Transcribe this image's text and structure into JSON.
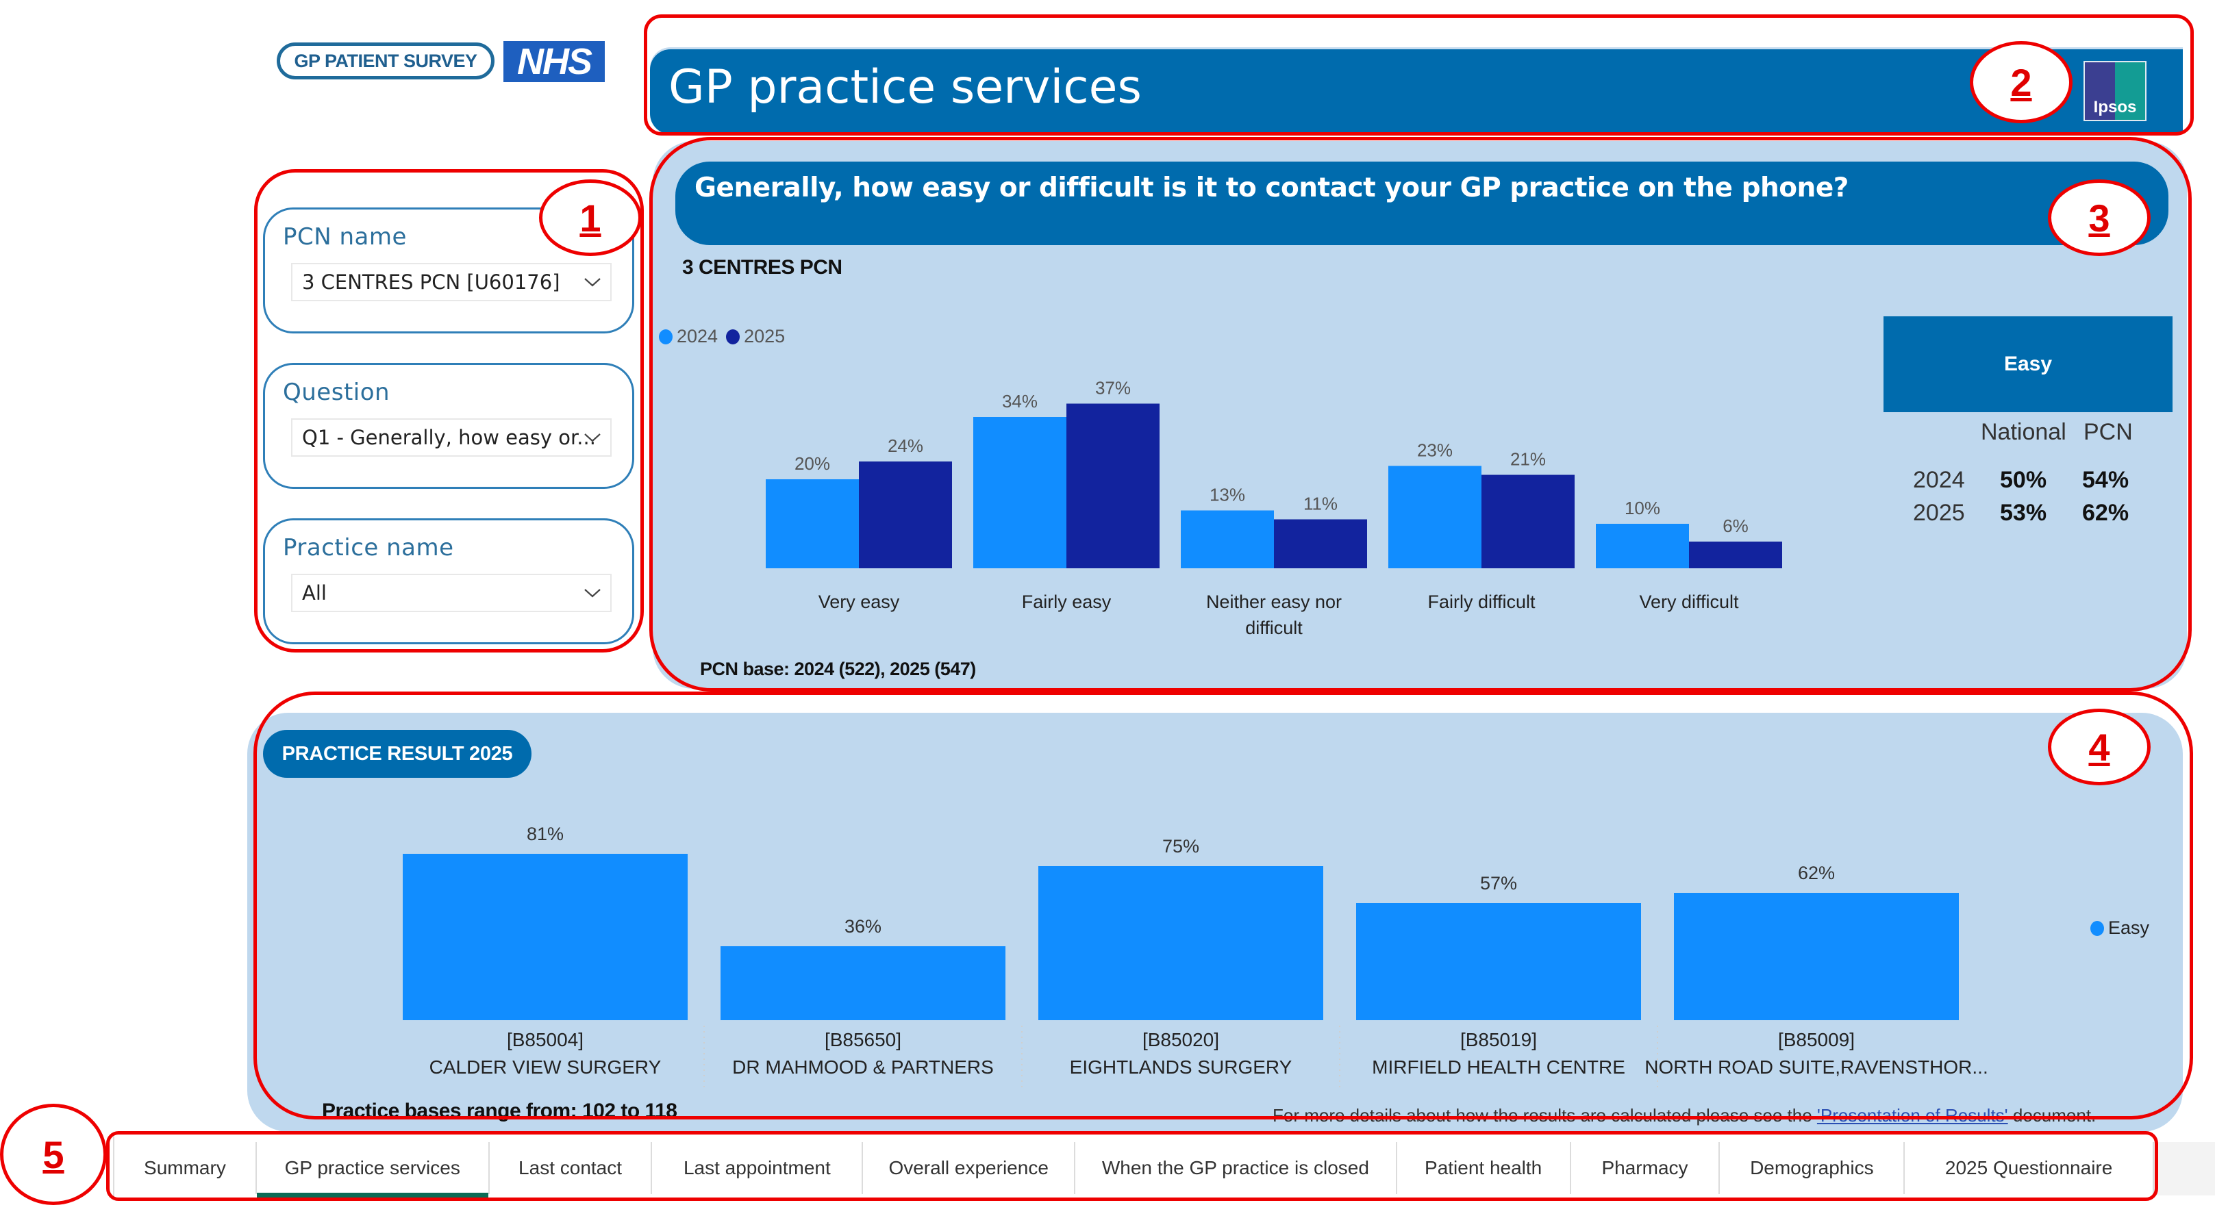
{
  "logos": {
    "survey_logo_text": "GP PATIENT SURVEY",
    "nhs_logo_text": "NHS",
    "ipsos_logo_text": "Ipsos"
  },
  "header": {
    "title": "GP practice services"
  },
  "filters": {
    "pcn": {
      "label": "PCN name",
      "value": "3 CENTRES PCN [U60176]",
      "icon": "chevron-down-icon"
    },
    "question": {
      "label": "Question",
      "value": "Q1 - Generally, how easy or...",
      "icon": "chevron-down-icon"
    },
    "practice": {
      "label": "Practice name",
      "value": "All",
      "icon": "chevron-down-icon"
    }
  },
  "question_panel": {
    "question": "Generally, how easy or difficult is it to contact your GP practice on the phone?",
    "pcn_title": "3 CENTRES PCN",
    "base_note": "PCN base: 2024 (522), 2025 (547)",
    "summary": {
      "title": "Easy",
      "col_headers": [
        "National",
        "PCN"
      ],
      "rows": [
        {
          "year": "2024",
          "national": "50%",
          "pcn": "54%"
        },
        {
          "year": "2025",
          "national": "53%",
          "pcn": "62%"
        }
      ]
    }
  },
  "practice_panel": {
    "pill": "PRACTICE RESULT 2025",
    "bases_note": "Practice bases range from: 102 to 118",
    "details_prefix": "For more details about how the results are calculated please see the ",
    "details_link": "'Presentation of Results'",
    "details_suffix": " document."
  },
  "tabs": [
    {
      "label": "Summary",
      "active": false
    },
    {
      "label": "GP practice services",
      "active": true
    },
    {
      "label": "Last contact",
      "active": false
    },
    {
      "label": "Last appointment",
      "active": false
    },
    {
      "label": "Overall experience",
      "active": false
    },
    {
      "label": "When the GP practice is closed",
      "active": false
    },
    {
      "label": "Patient health",
      "active": false
    },
    {
      "label": "Pharmacy",
      "active": false
    },
    {
      "label": "Demographics",
      "active": false
    },
    {
      "label": "2025 Questionnaire",
      "active": false
    }
  ],
  "annotations": [
    "1",
    "2",
    "3",
    "4",
    "5"
  ],
  "colors": {
    "brand_blue": "#006bad",
    "panel_bg": "#bfd8ee",
    "series_2024": "#118dff",
    "series_2025": "#12239e",
    "active_tab": "#0b6b55",
    "annotation_red": "#ee0000"
  },
  "chart_data": [
    {
      "type": "bar",
      "title": "Generally, how easy or difficult is it to contact your GP practice on the phone?",
      "subtitle": "3 CENTRES PCN",
      "categories": [
        "Very easy",
        "Fairly easy",
        "Neither easy nor difficult",
        "Fairly difficult",
        "Very difficult"
      ],
      "series": [
        {
          "name": "2024",
          "values": [
            20,
            34,
            13,
            23,
            10
          ]
        },
        {
          "name": "2025",
          "values": [
            24,
            37,
            11,
            21,
            6
          ]
        }
      ],
      "value_suffix": "%",
      "legend": [
        "2024",
        "2025"
      ],
      "legend_position": "top-left",
      "ylim": [
        0,
        40
      ],
      "grid": false
    },
    {
      "type": "bar",
      "title": "PRACTICE RESULT 2025",
      "categories": [
        [
          "[B85004]",
          "CALDER VIEW SURGERY"
        ],
        [
          "[B85650]",
          "DR MAHMOOD & PARTNERS"
        ],
        [
          "[B85020]",
          "EIGHTLANDS SURGERY"
        ],
        [
          "[B85019]",
          "MIRFIELD HEALTH CENTRE"
        ],
        [
          "[B85009]",
          "NORTH ROAD SUITE,RAVENSTHOR..."
        ]
      ],
      "series": [
        {
          "name": "Easy",
          "values": [
            81,
            36,
            75,
            57,
            62
          ]
        }
      ],
      "value_suffix": "%",
      "legend": [
        "Easy"
      ],
      "legend_position": "right",
      "ylim": [
        0,
        100
      ],
      "grid": false
    }
  ]
}
